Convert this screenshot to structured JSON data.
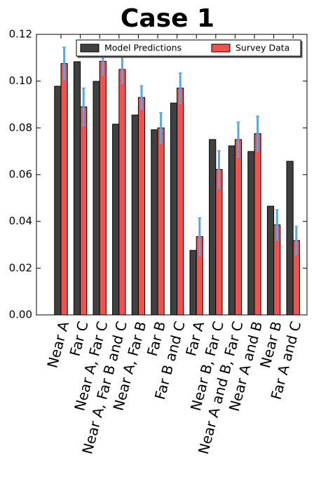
{
  "chart_data": {
    "type": "bar",
    "title": "Case 1",
    "categories": [
      "Near A",
      "Far C",
      "Near A, Far C",
      "Near A, Far B and C",
      "Near A, Far B",
      "Far B",
      "Far B and C",
      "Far A",
      "Near B, Far C",
      "Near A and B, Far C",
      "Near A and B",
      "Near B",
      "Far A and C"
    ],
    "series": [
      {
        "name": "Model Predictions",
        "color": "#404040",
        "values": [
          0.0978,
          0.1083,
          0.0999,
          0.0816,
          0.0855,
          0.0792,
          0.0906,
          0.0276,
          0.075,
          0.0723,
          0.0699,
          0.0465,
          0.0657
        ]
      },
      {
        "name": "Survey Data",
        "color": "#f0524f",
        "values": [
          0.1075,
          0.089,
          0.1085,
          0.105,
          0.093,
          0.08,
          0.097,
          0.0335,
          0.0622,
          0.075,
          0.0775,
          0.0385,
          0.0318
        ],
        "errors": [
          0.007,
          0.008,
          0.006,
          0.006,
          0.005,
          0.0065,
          0.0065,
          0.008,
          0.008,
          0.0075,
          0.0075,
          0.0065,
          0.006
        ],
        "error_color": "#5da5da"
      }
    ],
    "ylim": [
      0,
      0.12
    ],
    "yticks": [
      {
        "value": 0,
        "label": "0.00"
      },
      {
        "value": 0.02,
        "label": "0.02"
      },
      {
        "value": 0.04,
        "label": "0.04"
      },
      {
        "value": 0.06,
        "label": "0.06"
      },
      {
        "value": 0.08,
        "label": "0.08"
      },
      {
        "value": 0.1,
        "label": "0.10"
      },
      {
        "value": 0.12,
        "label": "0.12"
      }
    ],
    "legend": "upper right"
  }
}
